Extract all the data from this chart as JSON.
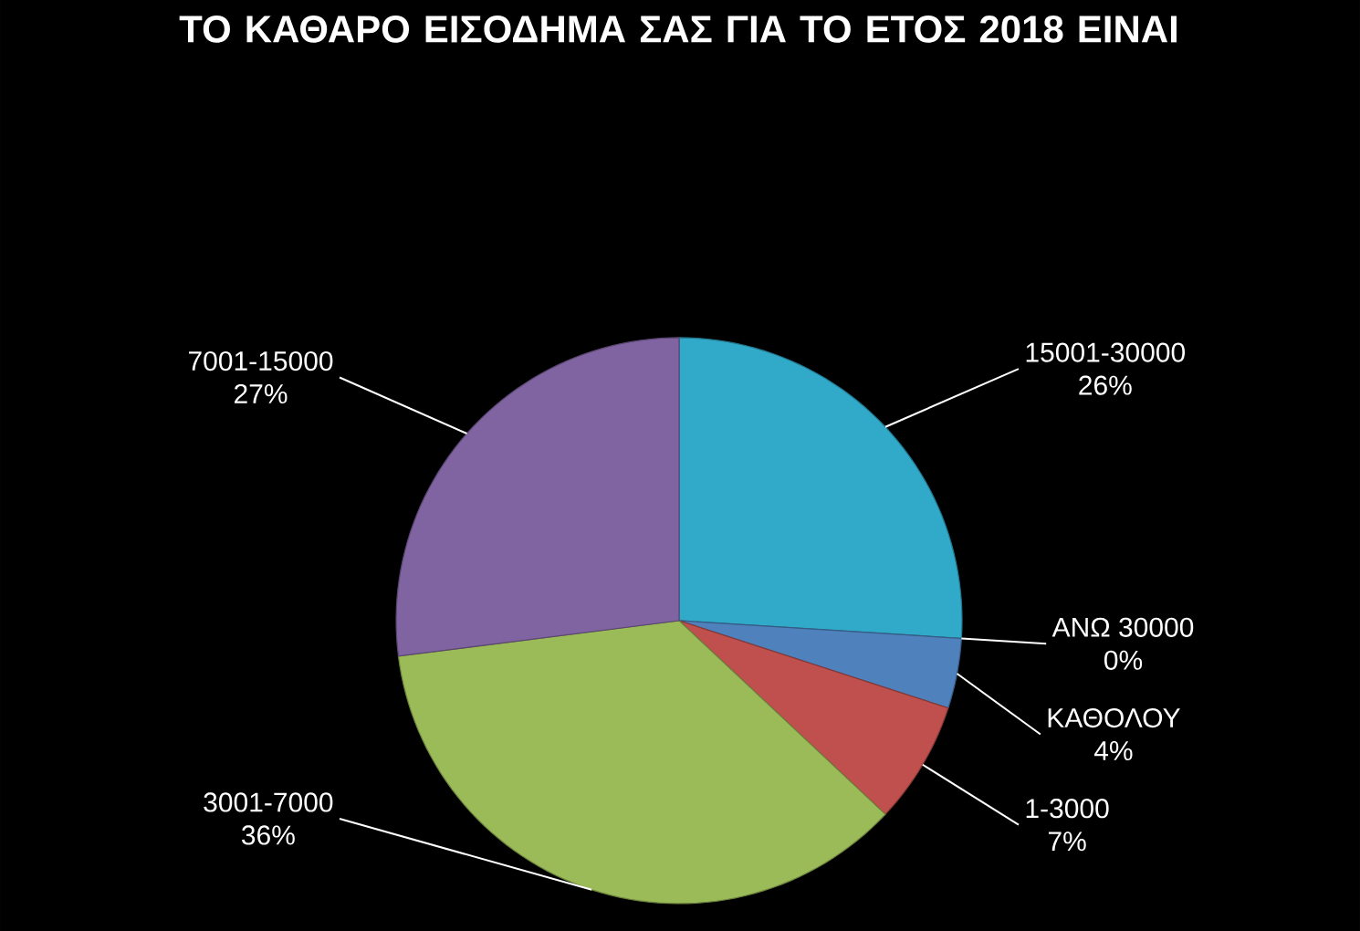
{
  "chart_data": {
    "type": "pie",
    "title": "ΤΟ ΚΑΘΑΡΟ  ΕΙΣΟΔΗΜΑ ΣΑΣ ΓΙΑ ΤΟ ΕΤΟΣ 2018 ΕΙΝΑΙ",
    "categories": [
      "15001-30000",
      "ΑΝΩ 30000",
      "ΚΑΘΟΛΟΥ",
      "1-3000",
      "3001-7000",
      "7001-15000"
    ],
    "values": [
      26,
      0,
      4,
      7,
      36,
      27
    ],
    "value_labels": [
      "26%",
      "0%",
      "4%",
      "7%",
      "36%",
      "27%"
    ],
    "colors": [
      "#31a9c9",
      "#f79646",
      "#4f81bd",
      "#c0504d",
      "#9bbb59",
      "#8064a2"
    ]
  }
}
